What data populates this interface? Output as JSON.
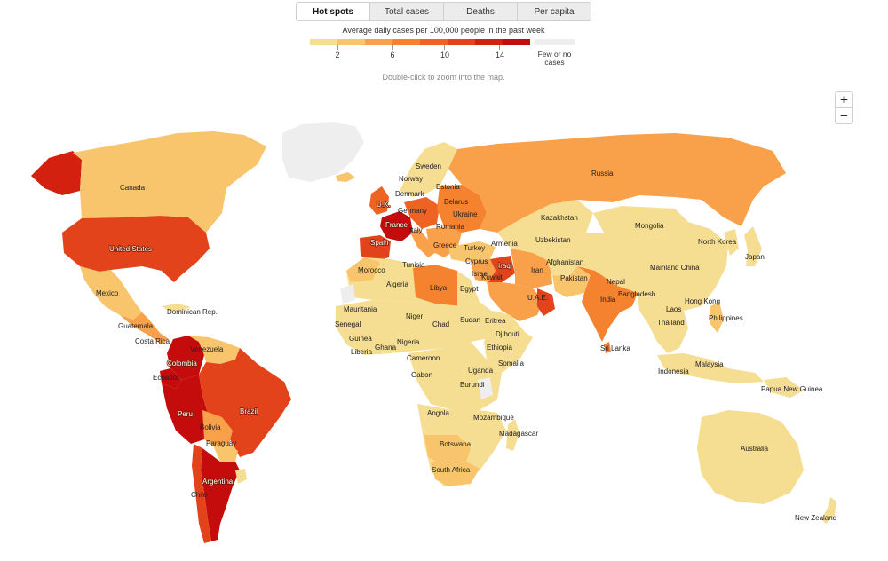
{
  "tabs": [
    {
      "label": "Hot spots",
      "active": true
    },
    {
      "label": "Total cases",
      "active": false
    },
    {
      "label": "Deaths",
      "active": false
    },
    {
      "label": "Per capita",
      "active": false
    }
  ],
  "legend": {
    "title": "Average daily cases per 100,000 people in the past week",
    "colors": [
      "#f5dd91",
      "#f8c46c",
      "#f9a04a",
      "#f5822f",
      "#ee6324",
      "#e3431a",
      "#d4200f",
      "#c50c0c"
    ],
    "ticks": [
      "2",
      "6",
      "10",
      "14"
    ],
    "no_data_color": "#eeeeee",
    "no_data_label_line1": "Few or no",
    "no_data_label_line2": "cases"
  },
  "hint": "Double-click to zoom into the map.",
  "zoom": {
    "in_label": "+",
    "out_label": "−"
  },
  "labels": {
    "canada": "Canada",
    "united_states": "United States",
    "mexico": "Mexico",
    "guatemala": "Guatemala",
    "dominican_rep": "Dominican Rep.",
    "costa_rica": "Costa Rica",
    "venezuela": "Venezuela",
    "colombia": "Colombia",
    "ecuador": "Ecuador",
    "peru": "Peru",
    "brazil": "Brazil",
    "bolivia": "Bolivia",
    "paraguay": "Paraguay",
    "argentina": "Argentina",
    "chile": "Chile",
    "sweden": "Sweden",
    "norway": "Norway",
    "estonia": "Estonia",
    "denmark": "Denmark",
    "belarus": "Belarus",
    "uk": "U.K.",
    "germany": "Germany",
    "ukraine": "Ukraine",
    "france": "France",
    "italy": "Italy",
    "romania": "Romania",
    "spain": "Spain",
    "greece": "Greece",
    "turkey": "Turkey",
    "armenia": "Armenia",
    "cyprus": "Cyprus",
    "israel": "Israel",
    "iraq": "Iraq",
    "kuwait": "Kuwait",
    "iran": "Iran",
    "uae": "U.A.E.",
    "russia": "Russia",
    "kazakhstan": "Kazakhstan",
    "uzbekistan": "Uzbekistan",
    "mongolia": "Mongolia",
    "north_korea": "North Korea",
    "japan": "Japan",
    "afghanistan": "Afghanistan",
    "pakistan": "Pakistan",
    "nepal": "Nepal",
    "mainland_china": "Mainland China",
    "bangladesh": "Bangladesh",
    "india": "India",
    "hong_kong": "Hong Kong",
    "laos": "Laos",
    "thailand": "Thailand",
    "philippines": "Philippines",
    "sri_lanka": "Sri Lanka",
    "malaysia": "Malaysia",
    "indonesia": "Indonesia",
    "papua_new_guinea": "Papua New Guinea",
    "australia": "Australia",
    "new_zealand": "New Zealand",
    "morocco": "Morocco",
    "tunisia": "Tunisia",
    "algeria": "Algeria",
    "libya": "Libya",
    "egypt": "Egypt",
    "mauritania": "Mauritania",
    "senegal": "Senegal",
    "niger": "Niger",
    "chad": "Chad",
    "sudan": "Sudan",
    "eritrea": "Eritrea",
    "djibouti": "Djibouti",
    "guinea": "Guinea",
    "nigeria": "Nigeria",
    "ethiopia": "Ethiopia",
    "liberia": "Liberia",
    "ghana": "Ghana",
    "cameroon": "Cameroon",
    "somalia": "Somalia",
    "gabon": "Gabon",
    "uganda": "Uganda",
    "burundi": "Burundi",
    "angola": "Angola",
    "mozambique": "Mozambique",
    "madagascar": "Madagascar",
    "botswana": "Botswana",
    "south_africa": "South Africa"
  }
}
